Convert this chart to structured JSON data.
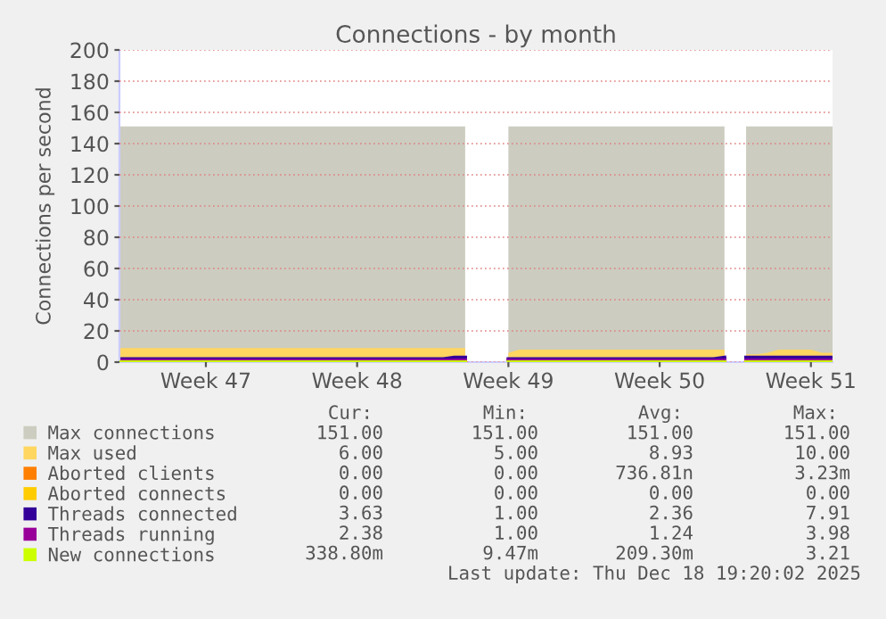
{
  "chart_data": {
    "type": "line",
    "title": "Connections - by month",
    "ylabel": "Connections per second",
    "categories": [
      null,
      null,
      null,
      null,
      null,
      null,
      null,
      null,
      "Week 47",
      null,
      null,
      null,
      null,
      null,
      null,
      null,
      null,
      null,
      null,
      null,
      null,
      null,
      "Week 48",
      null,
      null,
      null,
      null,
      null,
      null,
      null,
      null,
      null,
      null,
      null,
      null,
      null,
      "Week 49",
      null,
      null,
      null,
      null,
      null,
      null,
      null,
      null,
      null,
      null,
      null,
      null,
      null,
      "Week 50",
      null,
      null,
      null,
      null,
      null,
      null,
      null,
      null,
      null,
      null,
      null,
      null,
      null,
      "Week 51",
      null,
      null
    ],
    "ylim": [
      0,
      200
    ],
    "yticks": [
      0,
      20,
      40,
      60,
      80,
      100,
      120,
      140,
      160,
      180,
      200
    ],
    "grid": "y",
    "legend": "bottom",
    "series": [
      {
        "name": "Max connections",
        "type": "area",
        "color": "#ccccc0",
        "values": [
          151,
          151,
          151,
          151,
          151,
          151,
          151,
          151,
          151,
          151,
          151,
          151,
          151,
          151,
          151,
          151,
          151,
          151,
          151,
          151,
          151,
          151,
          151,
          151,
          151,
          151,
          151,
          151,
          151,
          151,
          151,
          151,
          151,
          null,
          null,
          null,
          151,
          151,
          151,
          151,
          151,
          151,
          151,
          151,
          151,
          151,
          151,
          151,
          151,
          151,
          151,
          151,
          151,
          151,
          151,
          151,
          151,
          null,
          151,
          151,
          151,
          151,
          151,
          151,
          151,
          151,
          151
        ]
      },
      {
        "name": "Max used",
        "type": "area",
        "color": "#ffd660",
        "values": [
          9,
          9,
          9,
          9,
          9,
          9,
          9,
          9,
          9,
          9,
          9,
          9,
          9,
          9,
          9,
          9,
          9,
          9,
          9,
          9,
          9,
          9,
          9,
          9,
          9,
          9,
          9,
          9,
          9,
          9,
          9,
          9,
          9,
          null,
          null,
          null,
          6,
          8,
          8,
          8,
          8,
          8,
          8,
          8,
          8,
          8,
          8,
          8,
          8,
          8,
          8,
          8,
          8,
          8,
          8,
          8,
          8,
          null,
          5,
          5,
          6,
          8,
          8,
          8,
          8,
          6,
          6
        ]
      },
      {
        "name": "Aborted clients",
        "color": "#ff7f00",
        "values": [
          null,
          null,
          null,
          null,
          null,
          null,
          null,
          null,
          null,
          null,
          null,
          null,
          null,
          null,
          null,
          null,
          null,
          null,
          null,
          null,
          null,
          null,
          null,
          null,
          null,
          null,
          null,
          null,
          null,
          null,
          null,
          null,
          null,
          null,
          null,
          null,
          null,
          null,
          null,
          null,
          null,
          null,
          null,
          null,
          null,
          null,
          null,
          null,
          null,
          null,
          null,
          null,
          null,
          null,
          null,
          null,
          null,
          null,
          null,
          null,
          null,
          null,
          null,
          null,
          null,
          null,
          null
        ]
      },
      {
        "name": "Aborted connects",
        "color": "#ffcc00",
        "values": [
          null,
          null,
          null,
          null,
          null,
          null,
          null,
          null,
          null,
          null,
          null,
          null,
          null,
          null,
          null,
          null,
          null,
          null,
          null,
          null,
          null,
          null,
          null,
          null,
          null,
          null,
          null,
          null,
          null,
          null,
          null,
          null,
          null,
          null,
          null,
          null,
          null,
          null,
          null,
          null,
          null,
          null,
          null,
          null,
          null,
          null,
          null,
          null,
          null,
          null,
          null,
          null,
          null,
          null,
          null,
          null,
          null,
          null,
          null,
          null,
          null,
          null,
          null,
          null,
          null,
          null,
          null
        ]
      },
      {
        "name": "Threads connected",
        "color": "#330099",
        "values": [
          2,
          2,
          2,
          2,
          2,
          2,
          2,
          2,
          2,
          2,
          2,
          2,
          2,
          2,
          2,
          2,
          2,
          2,
          2,
          2,
          2,
          2,
          2,
          2,
          2,
          2,
          2,
          2,
          2,
          2,
          2,
          3,
          3,
          null,
          null,
          null,
          2,
          2,
          2,
          2,
          2,
          2,
          2,
          2,
          2,
          2,
          2,
          2,
          2,
          2,
          2,
          2,
          2,
          2,
          2,
          2,
          3,
          null,
          3,
          3,
          3,
          3,
          3,
          3,
          3,
          3,
          3
        ]
      },
      {
        "name": "Threads running",
        "color": "#990099",
        "values": [
          1,
          1,
          1,
          1,
          1,
          1,
          1,
          1,
          1,
          1,
          1,
          1,
          1,
          1,
          1,
          1,
          1,
          1,
          1,
          1,
          1,
          1,
          1,
          1,
          1,
          1,
          1,
          1,
          1,
          1,
          1,
          1,
          1,
          null,
          null,
          null,
          1,
          1,
          1,
          1,
          1,
          1,
          1,
          1,
          1,
          1,
          1,
          1,
          1,
          1,
          1,
          1,
          1,
          1,
          1,
          1,
          1,
          null,
          1,
          1,
          1,
          1,
          1,
          1,
          1,
          1,
          1
        ]
      },
      {
        "name": "New connections",
        "color": "#ccff00",
        "values": [
          0,
          0,
          0,
          0,
          0,
          0,
          0,
          0,
          0,
          0,
          0,
          0,
          0,
          0,
          0,
          0,
          0,
          0,
          0,
          0,
          0,
          0,
          0,
          0,
          0,
          0,
          0,
          0,
          0,
          0,
          0,
          0,
          0,
          null,
          null,
          null,
          0,
          0,
          0,
          0,
          0,
          0,
          0,
          0,
          0,
          0,
          0,
          0,
          0,
          0,
          0,
          0,
          0,
          0,
          0,
          0,
          0,
          null,
          0,
          0,
          0,
          0,
          0,
          0,
          0,
          0,
          0
        ]
      }
    ],
    "annotations": [
      "Cur:",
      "Min:",
      "Avg:",
      "Max:",
      "151.00",
      "151.00",
      "151.00",
      "151.00",
      "6.00",
      "5.00",
      "8.93",
      "10.00",
      "0.00",
      "0.00",
      "736.81n",
      "3.23m",
      "0.00",
      "0.00",
      "0.00",
      "0.00",
      "3.63",
      "1.00",
      "2.36",
      "7.91",
      "2.38",
      "1.00",
      "1.24",
      "3.98",
      "338.80m",
      "9.47m",
      "209.30m",
      "3.21",
      "Last update: Thu Dec 18 19:20:02 2025"
    ]
  }
}
